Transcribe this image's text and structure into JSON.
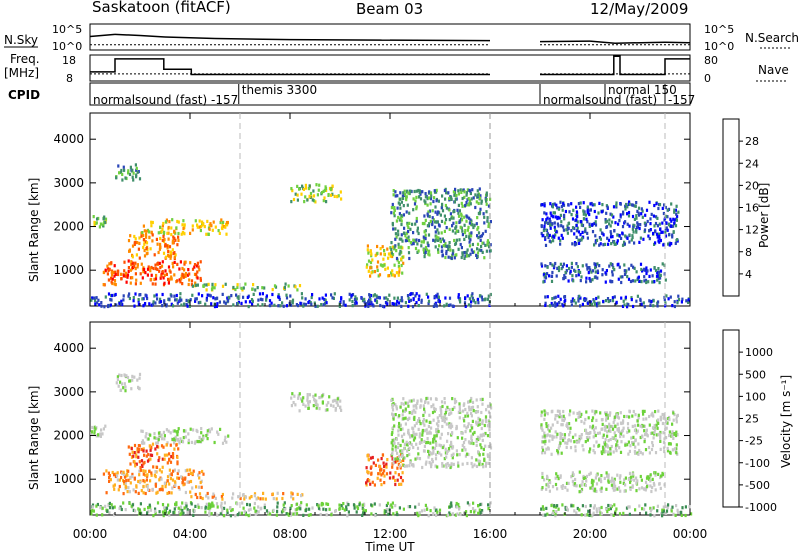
{
  "header": {
    "station": "Saskatoon (fitACF)",
    "beam": "Beam 03",
    "date": "12/May/2009"
  },
  "side_labels": {
    "nsky": "N.Sky",
    "freq": "Freq.",
    "freq_unit": "[MHz]",
    "cpid": "CPID",
    "nsearch": "N.Search",
    "nave": "Nave"
  },
  "tick_text": {
    "nsky_top": "10^5",
    "nsky_bottom": "10^0",
    "nsearch_top": "10^5",
    "nsearch_bottom": "10^0",
    "freq_top": "18",
    "freq_bottom": "8",
    "nave_top": "80",
    "nave_bottom": "0"
  },
  "cpid_labels": [
    {
      "text": "normalsound (fast) -157",
      "start_h": 0.0
    },
    {
      "text": "themis 3300",
      "start_h": 5.95
    },
    {
      "text": "normal 150",
      "start_h": 20.6
    },
    {
      "text": "normalsound (fast)",
      "start_h": 18.0
    },
    {
      "text": "-157",
      "start_h": 23.0
    }
  ],
  "chart_data": [
    {
      "type": "line",
      "name": "nsky-nsearch-panel",
      "x_range_hours": [
        0,
        24
      ],
      "data_gap_hours": [
        16.0,
        18.0
      ],
      "nsky_level_log": [
        [
          0,
          2.6
        ],
        [
          1,
          3.0
        ],
        [
          2,
          2.8
        ],
        [
          3,
          2.5
        ],
        [
          5,
          2.2
        ],
        [
          8,
          2.0
        ],
        [
          12,
          1.9
        ],
        [
          16,
          1.8
        ],
        [
          18,
          1.6
        ],
        [
          20,
          1.7
        ],
        [
          21,
          1.3
        ],
        [
          23,
          1.5
        ],
        [
          24,
          1.4
        ]
      ],
      "nsearch_level_log": [
        [
          0,
          1.0
        ],
        [
          16,
          1.0
        ],
        [
          18,
          1.0
        ],
        [
          24,
          1.0
        ]
      ]
    },
    {
      "type": "line",
      "name": "freq-nave-panel",
      "freq_mhz_steps": [
        [
          0,
          11.5
        ],
        [
          1.0,
          11.5
        ],
        [
          1.0,
          16.5
        ],
        [
          2.95,
          16.5
        ],
        [
          2.95,
          12.5
        ],
        [
          4.05,
          12.5
        ],
        [
          4.05,
          10.5
        ],
        [
          16.0,
          10.5
        ],
        [
          18.0,
          10.5
        ],
        [
          20.95,
          10.5
        ],
        [
          20.95,
          17.5
        ],
        [
          21.2,
          17.5
        ],
        [
          21.2,
          10.5
        ],
        [
          23.0,
          10.5
        ],
        [
          23.0,
          16.5
        ],
        [
          24,
          16.5
        ]
      ],
      "nave_level": [
        [
          0,
          22
        ],
        [
          24,
          22
        ]
      ]
    },
    {
      "type": "heatmap",
      "name": "power",
      "xlabel": "",
      "ylabel": "Slant Range [km]",
      "x_ticks": [
        "00:00",
        "04:00",
        "08:00",
        "12:00",
        "16:00",
        "20:00",
        "00:00"
      ],
      "y_ticks": [
        "1000",
        "2000",
        "3000",
        "4000"
      ],
      "ylim_km": [
        180,
        4600
      ],
      "colorbar_label": "Power [dB]",
      "colorbar_ticks": [
        "4",
        "8",
        "12",
        "16",
        "20",
        "24",
        "28"
      ],
      "colorbar_colors": [
        "#0000ff",
        "#2a45b8",
        "#3f8f6a",
        "#6fd040",
        "#ffd000",
        "#ff8a00",
        "#ff5000",
        "#ff0000"
      ],
      "echo_regions": [
        {
          "t": [
            0.0,
            0.6
          ],
          "r": [
            2000,
            2300
          ],
          "level": 3
        },
        {
          "t": [
            1.0,
            2.0
          ],
          "r": [
            3050,
            3450
          ],
          "level": 2
        },
        {
          "t": [
            2.0,
            5.5
          ],
          "r": [
            1850,
            2200
          ],
          "level": 4
        },
        {
          "t": [
            1.5,
            3.5
          ],
          "r": [
            1300,
            1850
          ],
          "level": 5
        },
        {
          "t": [
            0.5,
            4.5
          ],
          "r": [
            700,
            1250
          ],
          "level": 6
        },
        {
          "t": [
            4.0,
            8.5
          ],
          "r": [
            580,
            720
          ],
          "level": 3
        },
        {
          "t": [
            8.0,
            10.0
          ],
          "r": [
            2600,
            3000
          ],
          "level": 3
        },
        {
          "t": [
            11.0,
            12.5
          ],
          "r": [
            900,
            1600
          ],
          "level": 4
        },
        {
          "t": [
            12.0,
            16.0
          ],
          "r": [
            1300,
            2900
          ],
          "level": 2
        },
        {
          "t": [
            0.0,
            16.0
          ],
          "r": [
            200,
            500
          ],
          "level": 1
        },
        {
          "t": [
            18.0,
            23.0
          ],
          "r": [
            750,
            1200
          ],
          "level": 1
        },
        {
          "t": [
            18.0,
            23.5
          ],
          "r": [
            1600,
            2600
          ],
          "level": 1
        },
        {
          "t": [
            18.0,
            24.0
          ],
          "r": [
            200,
            450
          ],
          "level": 1
        }
      ]
    },
    {
      "type": "heatmap",
      "name": "velocity",
      "xlabel": "Time UT",
      "ylabel": "Slant Range [km]",
      "x_ticks": [
        "00:00",
        "04:00",
        "08:00",
        "12:00",
        "16:00",
        "20:00",
        "00:00"
      ],
      "y_ticks": [
        "1000",
        "2000",
        "3000",
        "4000"
      ],
      "ylim_km": [
        180,
        4600
      ],
      "colorbar_label": "Velocity [m s⁻¹]",
      "colorbar_ticks": [
        "1000",
        "500",
        "100",
        "25",
        "-25",
        "-100",
        "-500",
        "-1000"
      ],
      "colorbar_colors": [
        "#2c3cc8",
        "#3a8c52",
        "#6dd23a",
        "#c8c8c8",
        "#c8c8c8",
        "#ffb020",
        "#ff6a10",
        "#e62020"
      ],
      "echo_regions": [
        {
          "t": [
            0.0,
            0.6
          ],
          "r": [
            2000,
            2300
          ],
          "level": 3
        },
        {
          "t": [
            1.0,
            2.0
          ],
          "r": [
            3050,
            3450
          ],
          "level": 3
        },
        {
          "t": [
            2.0,
            5.5
          ],
          "r": [
            1850,
            2200
          ],
          "level": 3
        },
        {
          "t": [
            1.5,
            3.5
          ],
          "r": [
            1300,
            1850
          ],
          "level": 6
        },
        {
          "t": [
            0.5,
            4.5
          ],
          "r": [
            700,
            1250
          ],
          "level": 5
        },
        {
          "t": [
            4.0,
            8.5
          ],
          "r": [
            580,
            720
          ],
          "level": 5
        },
        {
          "t": [
            8.0,
            10.0
          ],
          "r": [
            2600,
            3000
          ],
          "level": 3
        },
        {
          "t": [
            11.0,
            12.5
          ],
          "r": [
            900,
            1600
          ],
          "level": 6
        },
        {
          "t": [
            12.0,
            16.0
          ],
          "r": [
            1300,
            2900
          ],
          "level": 3
        },
        {
          "t": [
            0.0,
            16.0
          ],
          "r": [
            200,
            500
          ],
          "level": 2
        },
        {
          "t": [
            18.0,
            23.0
          ],
          "r": [
            750,
            1200
          ],
          "level": 3
        },
        {
          "t": [
            18.0,
            23.5
          ],
          "r": [
            1600,
            2600
          ],
          "level": 3
        },
        {
          "t": [
            18.0,
            24.0
          ],
          "r": [
            200,
            450
          ],
          "level": 2
        }
      ]
    }
  ]
}
